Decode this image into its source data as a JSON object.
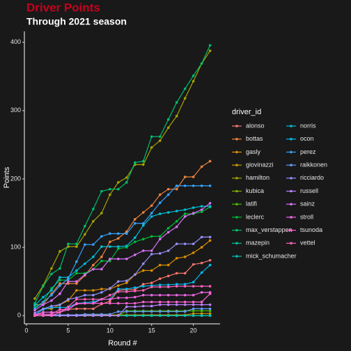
{
  "chart_data": {
    "type": "line",
    "title": "Driver Points",
    "subtitle": "Through 2021 season",
    "x_label": "Round #",
    "y_label": "Points",
    "legend_title": "driver_id",
    "x": [
      1,
      2,
      3,
      4,
      5,
      6,
      7,
      8,
      9,
      10,
      11,
      12,
      13,
      14,
      15,
      16,
      17,
      18,
      19,
      20,
      21,
      22
    ],
    "xlim": [
      -0.25,
      23.2
    ],
    "xticks": [
      0,
      5,
      10,
      15,
      20
    ],
    "ylim": [
      -12,
      416
    ],
    "yticks": [
      0,
      100,
      200,
      300,
      400
    ],
    "grid": false,
    "series": [
      {
        "name": "alonso",
        "color": "#F8766D",
        "values": [
          0,
          5,
          5,
          5,
          9,
          10,
          10,
          10,
          17,
          21,
          37,
          38,
          38,
          46,
          48,
          54,
          58,
          62,
          62,
          75,
          77,
          81
        ]
      },
      {
        "name": "bottas",
        "color": "#EC823C",
        "values": [
          16,
          16,
          32,
          47,
          47,
          47,
          59,
          74,
          86,
          108,
          113,
          123,
          141,
          151,
          161,
          177,
          185,
          185,
          203,
          203,
          218,
          226
        ]
      },
      {
        "name": "gasly",
        "color": "#DB8E00",
        "values": [
          0,
          10,
          10,
          16,
          22,
          37,
          37,
          37,
          39,
          39,
          44,
          48,
          60,
          66,
          66,
          74,
          74,
          84,
          86,
          92,
          100,
          110
        ]
      },
      {
        "name": "giovinazzi",
        "color": "#C49A00",
        "values": [
          0,
          0,
          1,
          1,
          1,
          1,
          1,
          1,
          1,
          1,
          1,
          1,
          1,
          1,
          1,
          1,
          1,
          1,
          1,
          3,
          3,
          3
        ]
      },
      {
        "name": "hamilton",
        "color": "#A6A400",
        "values": [
          25,
          44,
          69,
          94,
          101,
          101,
          119,
          138,
          150,
          177,
          195,
          202,
          221,
          221,
          246,
          256,
          275,
          292,
          318,
          343,
          369,
          387.5
        ]
      },
      {
        "name": "kubica",
        "color": "#80AD00",
        "values": [
          null,
          null,
          null,
          null,
          null,
          null,
          null,
          null,
          null,
          null,
          null,
          null,
          0,
          0,
          null,
          null,
          null,
          null,
          null,
          null,
          null,
          null
        ]
      },
      {
        "name": "latifi",
        "color": "#48B500",
        "values": [
          0,
          0,
          0,
          0,
          0,
          0,
          0,
          0,
          0,
          0,
          0,
          7,
          7,
          7,
          7,
          7,
          7,
          7,
          7,
          7,
          7,
          7
        ]
      },
      {
        "name": "leclerc",
        "color": "#00BA38",
        "values": [
          12,
          20,
          40,
          52,
          52,
          62,
          62,
          68,
          80,
          80,
          98,
          100,
          108,
          112,
          116,
          116,
          128,
          138,
          149,
          149,
          152,
          159
        ]
      },
      {
        "name": "max_verstappen",
        "color": "#00BE6C",
        "values": [
          18,
          43,
          61,
          69,
          105,
          105,
          131,
          156,
          182,
          185,
          185,
          195,
          224,
          226,
          262,
          262,
          287,
          312,
          332,
          351,
          369,
          395.5
        ]
      },
      {
        "name": "mazepin",
        "color": "#00C094",
        "values": [
          0,
          0,
          0,
          0,
          0,
          0,
          0,
          0,
          0,
          0,
          0,
          0,
          0,
          0,
          0,
          0,
          0,
          0,
          0,
          0,
          0,
          0
        ]
      },
      {
        "name": "mick_schumacher",
        "color": "#00C1B7",
        "values": [
          0,
          0,
          0,
          0,
          0,
          0,
          0,
          0,
          0,
          0,
          0,
          0,
          0,
          0,
          0,
          0,
          0,
          0,
          0,
          0,
          0,
          0
        ]
      },
      {
        "name": "norris",
        "color": "#00BFD6",
        "values": [
          15,
          27,
          37,
          56,
          56,
          66,
          76,
          86,
          101,
          101,
          101,
          102,
          114,
          132,
          145,
          149,
          151,
          153,
          155,
          158,
          160,
          160
        ]
      },
      {
        "name": "ocon",
        "color": "#00BAEE",
        "values": [
          1,
          9,
          12,
          12,
          12,
          18,
          19,
          20,
          24,
          24,
          39,
          39,
          41,
          43,
          44,
          45,
          45,
          46,
          46,
          49,
          63,
          74
        ]
      },
      {
        "name": "perez",
        "color": "#35A2FF",
        "values": [
          10,
          20,
          30,
          44,
          54,
          79,
          104,
          104,
          116,
          120,
          120,
          120,
          135,
          135,
          150,
          165,
          177,
          190,
          190,
          190,
          190,
          190
        ]
      },
      {
        "name": "raikkonen",
        "color": "#619CFF",
        "values": [
          0,
          0,
          1,
          1,
          1,
          1,
          2,
          2,
          2,
          2,
          6,
          6,
          6,
          6,
          6,
          6,
          6,
          6,
          6,
          10,
          10,
          10
        ]
      },
      {
        "name": "ricciardo",
        "color": "#9590FF",
        "values": [
          4,
          10,
          14,
          16,
          24,
          26,
          30,
          30,
          34,
          40,
          50,
          51,
          60,
          76,
          90,
          91,
          95,
          105,
          105,
          105,
          115,
          115
        ]
      },
      {
        "name": "russell",
        "color": "#BB82FF",
        "values": [
          0,
          0,
          0,
          0,
          0,
          0,
          0,
          0,
          0,
          0,
          0,
          13,
          13,
          14,
          14,
          16,
          16,
          16,
          16,
          16,
          16,
          16
        ]
      },
      {
        "name": "sainz",
        "color": "#DB72FB",
        "values": [
          8,
          16,
          22,
          32,
          50,
          50,
          60,
          68,
          68,
          83,
          83,
          83,
          89,
          95,
          95,
          112,
          122,
          130,
          145,
          150,
          155,
          164.5
        ]
      },
      {
        "name": "stroll",
        "color": "#F066EA",
        "values": [
          1,
          5,
          5,
          5,
          9,
          17,
          18,
          18,
          24,
          24,
          26,
          26,
          27,
          30,
          30,
          30,
          30,
          30,
          30,
          30,
          34,
          34
        ]
      },
      {
        "name": "tsunoda",
        "color": "#FC61D5",
        "values": [
          2,
          2,
          2,
          9,
          9,
          18,
          18,
          18,
          18,
          18,
          18,
          18,
          18,
          20,
          20,
          20,
          20,
          20,
          20,
          20,
          20,
          32
        ]
      },
      {
        "name": "vettel",
        "color": "#FF62BC",
        "values": [
          0,
          0,
          0,
          5,
          13,
          24,
          24,
          24,
          24,
          30,
          35,
          35,
          36,
          37,
          42,
          42,
          42,
          43,
          43,
          43,
          43,
          43
        ]
      }
    ]
  }
}
